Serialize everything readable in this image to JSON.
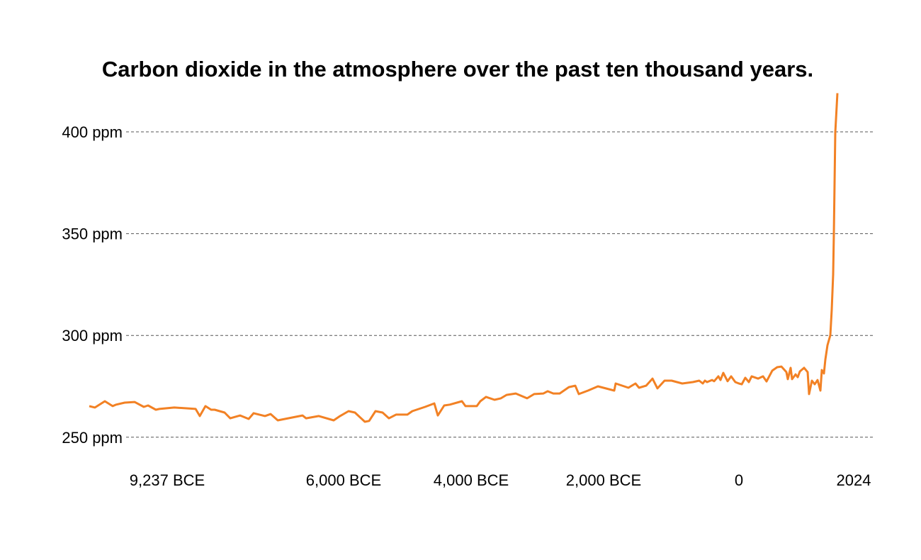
{
  "chart_data": {
    "type": "line",
    "title": "Carbon dioxide in the atmosphere over the past ten thousand years.",
    "xlabel": "",
    "ylabel": "",
    "ylim": [
      240,
      420
    ],
    "grid": true,
    "y_ticks": [
      {
        "value": 250,
        "label": "250 ppm"
      },
      {
        "value": 300,
        "label": "300 ppm"
      },
      {
        "value": 350,
        "label": "350 ppm"
      },
      {
        "value": 400,
        "label": "400 ppm"
      }
    ],
    "x_ticks": [
      {
        "value": -9237,
        "label": "9,237 BCE"
      },
      {
        "value": -6000,
        "label": "6,000 BCE"
      },
      {
        "value": -4000,
        "label": "4,000 BCE"
      },
      {
        "value": -2000,
        "label": "2,000 BCE"
      },
      {
        "value": 0,
        "label": "0"
      },
      {
        "value": 2024,
        "label": "2024"
      }
    ],
    "line_color": "#f28124",
    "series": [
      {
        "x": [
          -9237,
          -9165,
          -9039,
          -8939,
          -8894,
          -8786,
          -8660,
          -8543,
          -8489,
          -8389,
          -8344,
          -8155,
          -7884,
          -7830,
          -7758,
          -7686,
          -7641,
          -7515,
          -7443,
          -7316,
          -7208,
          -7145,
          -7001,
          -6929,
          -6838,
          -6649,
          -6523,
          -6478,
          -6316,
          -6126,
          -6045,
          -5922,
          -5822,
          -5667,
          -5600,
          -5500,
          -5389,
          -5289,
          -5178,
          -5000,
          -4922,
          -4722,
          -4578,
          -4522,
          -4422,
          -4333,
          -4145,
          -4089,
          -3914,
          -3861,
          -3775,
          -3647,
          -3551,
          -3465,
          -3326,
          -3155,
          -3048,
          -2909,
          -2845,
          -2759,
          -2663,
          -2524,
          -2428,
          -2374,
          -2235,
          -2086,
          -1843,
          -1822,
          -1634,
          -1529,
          -1476,
          -1372,
          -1278,
          -1204,
          -1100,
          -995,
          -838,
          -681,
          -587,
          -534,
          -503,
          -471,
          -398,
          -367,
          -304,
          -272,
          -231,
          -168,
          -115,
          -53,
          0,
          58,
          131,
          204,
          262,
          393,
          495,
          568,
          684,
          786,
          874,
          976,
          1005,
          1063,
          1092,
          1165,
          1208,
          1252,
          1340,
          1412,
          1441,
          1500,
          1558,
          1616,
          1674,
          1703,
          1747,
          1776,
          1820,
          1878,
          1907,
          1936,
          1951,
          1980,
          2024
        ],
        "y": [
          265.3,
          264.6,
          267.7,
          265.3,
          266.0,
          267.0,
          267.3,
          264.9,
          265.6,
          263.5,
          263.9,
          264.6,
          263.9,
          260.4,
          265.3,
          263.5,
          263.5,
          262.1,
          259.3,
          260.7,
          259.0,
          261.8,
          260.4,
          261.4,
          258.3,
          259.7,
          260.7,
          259.3,
          260.4,
          258.3,
          260.4,
          262.8,
          262.1,
          257.6,
          258.0,
          262.8,
          262.1,
          259.3,
          261.1,
          261.1,
          262.8,
          264.9,
          266.6,
          260.7,
          265.6,
          266.0,
          267.7,
          265.3,
          265.3,
          267.7,
          269.8,
          268.4,
          269.1,
          270.8,
          271.5,
          269.1,
          271.2,
          271.5,
          272.6,
          271.5,
          271.5,
          274.6,
          275.3,
          271.2,
          272.9,
          275.0,
          272.9,
          276.4,
          274.3,
          276.4,
          274.3,
          275.3,
          278.8,
          274.0,
          277.8,
          277.8,
          276.4,
          277.1,
          277.8,
          276.4,
          277.8,
          277.1,
          278.1,
          277.5,
          279.9,
          278.1,
          281.6,
          277.5,
          279.9,
          277.1,
          276.4,
          276.0,
          279.2,
          277.1,
          279.9,
          278.8,
          279.9,
          277.4,
          282.7,
          284.4,
          284.7,
          282.0,
          278.5,
          284.1,
          278.5,
          280.9,
          279.5,
          282.3,
          284.1,
          282.0,
          271.2,
          277.8,
          276.0,
          278.1,
          272.9,
          283.0,
          281.3,
          288.2,
          295.2,
          300.1,
          312.6,
          330.0,
          349.9,
          399.7,
          419.0
        ]
      }
    ]
  }
}
